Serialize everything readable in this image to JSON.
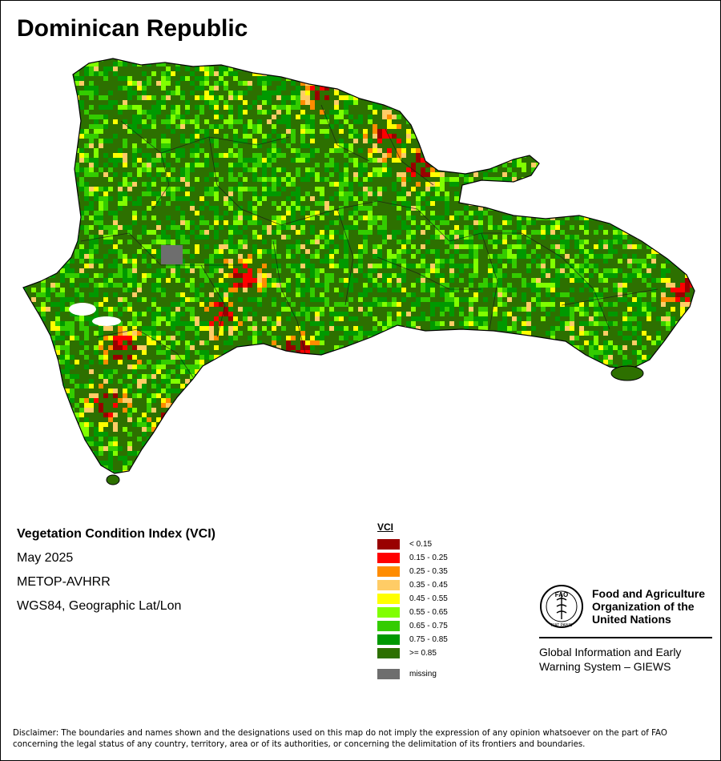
{
  "map": {
    "title": "Dominican Republic",
    "info_lines": [
      "Vegetation Condition Index (VCI)",
      "May 2025",
      "METOP-AVHRR",
      "WGS84, Geographic Lat/Lon"
    ]
  },
  "legend": {
    "title": "VCI",
    "classes": [
      {
        "label": "< 0.15",
        "color": "#990000"
      },
      {
        "label": "0.15 - 0.25",
        "color": "#ff0000"
      },
      {
        "label": "0.25 - 0.35",
        "color": "#ff8c00"
      },
      {
        "label": "0.35 - 0.45",
        "color": "#ffcc66"
      },
      {
        "label": "0.45 - 0.55",
        "color": "#ffff00"
      },
      {
        "label": "0.55 - 0.65",
        "color": "#80ff00"
      },
      {
        "label": "0.65 - 0.75",
        "color": "#33cc00"
      },
      {
        "label": "0.75 - 0.85",
        "color": "#009900"
      },
      {
        "label": ">= 0.85",
        "color": "#2d7000"
      }
    ],
    "missing": {
      "label": "missing",
      "color": "#6e6e6e"
    }
  },
  "fao": {
    "emblem_text": "FAO",
    "motto": "FIAT PANIS",
    "name_lines": [
      "Food and Agriculture",
      "Organization of the",
      "United Nations"
    ],
    "giews_lines": [
      "Global Information and Early",
      "Warning System – GIEWS"
    ]
  },
  "disclaimer": "Disclaimer: The boundaries and names shown and the designations used on this map do not imply the expression of any opinion whatsoever on the part of FAO concerning the legal status of any country, territory, area or of its authorities, or concerning the delimitation of its frontiers and boundaries."
}
